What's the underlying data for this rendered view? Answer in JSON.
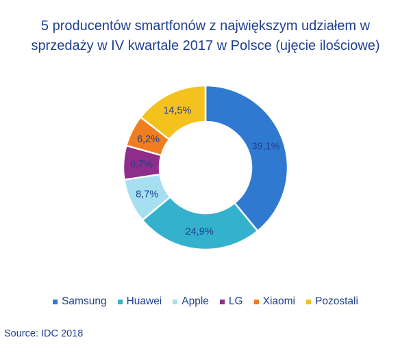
{
  "chart_data": {
    "type": "pie",
    "donut": true,
    "title_lines": [
      "5 producentów smartfonów z największym udziałem w",
      "sprzedaży w IV kwartale 2017 w Polsce (ujęcie ilościowe)"
    ],
    "slices": [
      {
        "name": "Samsung",
        "value": 39.1,
        "label": "39,1%",
        "color": "#2f7ad0"
      },
      {
        "name": "Huawei",
        "value": 24.9,
        "label": "24,9%",
        "color": "#34b1cd"
      },
      {
        "name": "Apple",
        "value": 8.7,
        "label": "8,7%",
        "color": "#a5dff0"
      },
      {
        "name": "LG",
        "value": 6.7,
        "label": "6,7%",
        "color": "#8f2e8a"
      },
      {
        "name": "Xiaomi",
        "value": 6.2,
        "label": "6,2%",
        "color": "#f07d1f"
      },
      {
        "name": "Pozostali",
        "value": 14.5,
        "label": "14,5%",
        "color": "#f4c21c"
      }
    ],
    "legend_position": "bottom"
  },
  "source": "Source: IDC 2018",
  "colors": {
    "text": "#1f3f8f",
    "label_on_dark": "#1f3f8f"
  }
}
